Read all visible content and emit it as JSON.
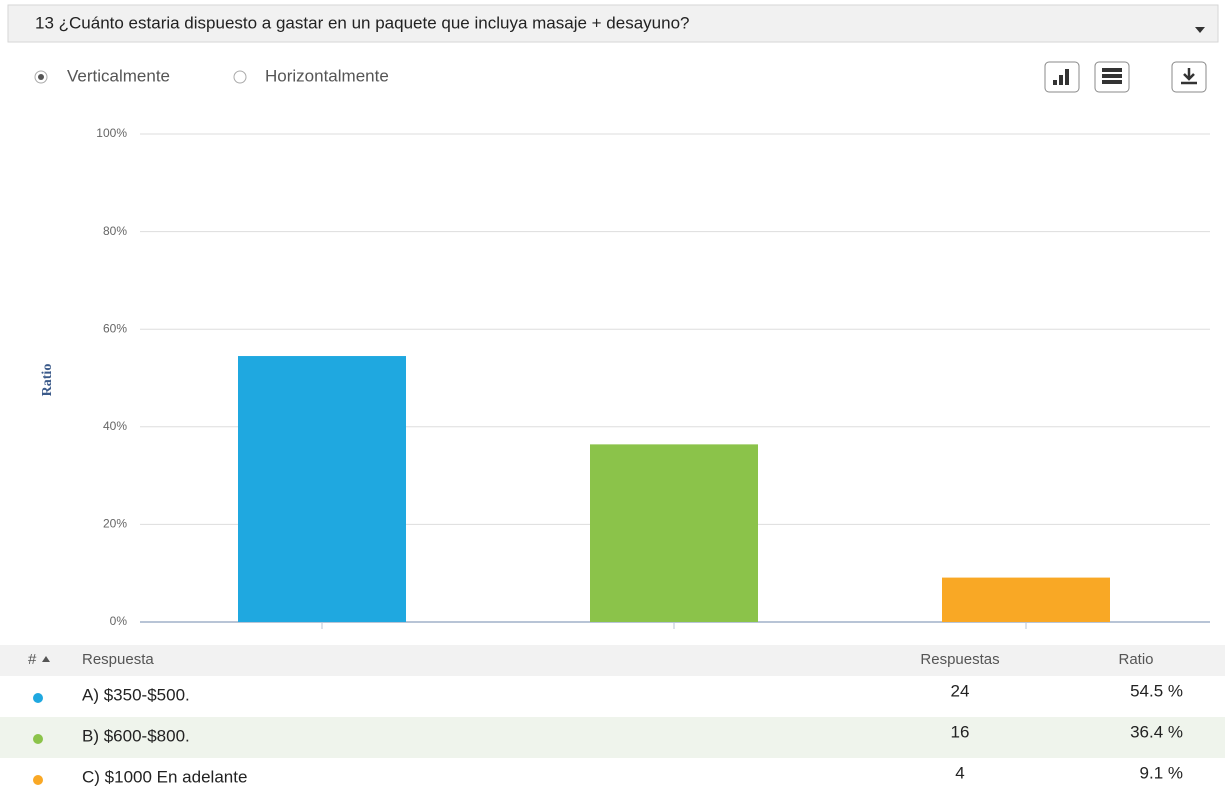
{
  "header": {
    "title": "13 ¿Cuánto estaria dispuesto a gastar en un paquete que incluya masaje + desayuno?"
  },
  "options": [
    "Verticalmente",
    "Horizontalmente"
  ],
  "chart_data": {
    "type": "bar",
    "ylabel": "Ratio",
    "categories": [
      null,
      null,
      null
    ],
    "values": [
      54.5,
      36.4,
      9.1
    ],
    "colors": [
      "#1fa8e0",
      "#8bc34a",
      "#f9a825"
    ],
    "ylim": [
      0,
      100
    ],
    "yticks": [
      {
        "value": 0,
        "label": "0%"
      },
      {
        "value": 20,
        "label": "20%"
      },
      {
        "value": 40,
        "label": "40%"
      },
      {
        "value": 60,
        "label": "60%"
      },
      {
        "value": 80,
        "label": "80%"
      },
      {
        "value": 100,
        "label": "100%"
      }
    ],
    "grid": true
  },
  "table": {
    "header": [
      "#",
      "Respuesta",
      "Respuestas",
      "Ratio"
    ],
    "rows": [
      [
        "A) $350-$500.",
        "24",
        "54.5 %"
      ],
      [
        "B) $600-$800.",
        "16",
        "36.4 %"
      ],
      [
        "C) $1000 En adelante",
        "4",
        "9.1 %"
      ]
    ]
  }
}
